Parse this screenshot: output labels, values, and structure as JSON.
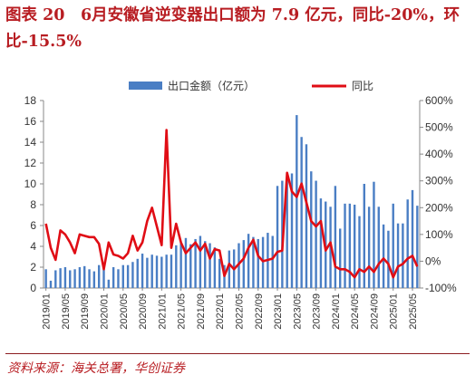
{
  "figure": {
    "title": "图表 20　6月安徽省逆变器出口额为 7.9 亿元，同比-20%，环比-15.5%",
    "source": "资料来源：海关总署，华创证券"
  },
  "colors": {
    "bar": "#4a7ec4",
    "line": "#e00d15",
    "axis": "#888888",
    "text": "#333333",
    "brand": "#b81d22"
  },
  "chart_data": {
    "type": "bar+line",
    "legend": [
      "出口金额（亿元）",
      "同比"
    ],
    "legend_position": "top",
    "grid": false,
    "x_tick_labels": [
      "2019/01",
      "2019/05",
      "2019/09",
      "2020/01",
      "2020/05",
      "2020/09",
      "2021/01",
      "2021/05",
      "2021/09",
      "2022/01",
      "2022/05",
      "2022/09",
      "2023/01",
      "2023/05",
      "2023/09",
      "2024/01",
      "2024/05",
      "2024/09",
      "2025/01",
      "2025/05"
    ],
    "left_axis": {
      "ylim": [
        0,
        18
      ],
      "ticks": [
        "0",
        "2",
        "4",
        "6",
        "8",
        "10",
        "12",
        "14",
        "16",
        "18"
      ]
    },
    "right_axis": {
      "ylim": [
        -100,
        600
      ],
      "ticks": [
        "-100%",
        "0%",
        "100%",
        "200%",
        "300%",
        "400%",
        "500%",
        "600%"
      ]
    },
    "x": [
      "2019/01",
      "2019/02",
      "2019/03",
      "2019/04",
      "2019/05",
      "2019/06",
      "2019/07",
      "2019/08",
      "2019/09",
      "2019/10",
      "2019/11",
      "2019/12",
      "2020/01",
      "2020/02",
      "2020/03",
      "2020/04",
      "2020/05",
      "2020/06",
      "2020/07",
      "2020/08",
      "2020/09",
      "2020/10",
      "2020/11",
      "2020/12",
      "2021/01",
      "2021/02",
      "2021/03",
      "2021/04",
      "2021/05",
      "2021/06",
      "2021/07",
      "2021/08",
      "2021/09",
      "2021/10",
      "2021/11",
      "2021/12",
      "2022/01",
      "2022/02",
      "2022/03",
      "2022/04",
      "2022/05",
      "2022/06",
      "2022/07",
      "2022/08",
      "2022/09",
      "2022/10",
      "2022/11",
      "2022/12",
      "2023/01",
      "2023/02",
      "2023/03",
      "2023/04",
      "2023/05",
      "2023/06",
      "2023/07",
      "2023/08",
      "2023/09",
      "2023/10",
      "2023/11",
      "2023/12",
      "2024/01",
      "2024/02",
      "2024/03",
      "2024/04",
      "2024/05",
      "2024/06",
      "2024/07",
      "2024/08",
      "2024/09",
      "2024/10",
      "2024/11",
      "2024/12",
      "2025/01",
      "2025/02",
      "2025/03",
      "2025/04",
      "2025/05",
      "2025/06"
    ],
    "series": [
      {
        "name": "出口金额（亿元）",
        "type": "bar",
        "axis": "left",
        "values": [
          1.8,
          0.7,
          1.7,
          1.9,
          2.0,
          1.7,
          1.8,
          2.0,
          2.1,
          1.8,
          1.6,
          2.2,
          1.8,
          0.8,
          2.0,
          1.8,
          2.2,
          2.2,
          2.5,
          2.8,
          3.3,
          2.9,
          3.2,
          3.1,
          3.0,
          3.2,
          3.2,
          4.1,
          4.4,
          4.8,
          4.2,
          4.7,
          5.0,
          4.5,
          4.3,
          3.9,
          2.8,
          2.2,
          3.6,
          3.7,
          4.3,
          4.6,
          5.2,
          4.9,
          4.7,
          4.9,
          5.3,
          5.0,
          9.8,
          10.3,
          11.0,
          11.0,
          16.6,
          14.5,
          13.8,
          11.2,
          10.3,
          8.6,
          8.3,
          7.8,
          9.8,
          5.7,
          8.1,
          8.1,
          8.0,
          6.9,
          10.0,
          7.8,
          10.2,
          7.8,
          6.1,
          5.5,
          8.1,
          6.2,
          6.2,
          8.5,
          9.4,
          7.9
        ]
      },
      {
        "name": "同比",
        "type": "line",
        "axis": "right",
        "unit": "%",
        "values": [
          140,
          50,
          5,
          115,
          100,
          70,
          30,
          100,
          95,
          90,
          90,
          65,
          -30,
          70,
          25,
          20,
          10,
          30,
          95,
          40,
          70,
          150,
          200,
          130,
          60,
          490,
          50,
          140,
          70,
          30,
          50,
          70,
          40,
          65,
          10,
          45,
          40,
          -55,
          -10,
          -30,
          -10,
          10,
          50,
          80,
          20,
          0,
          5,
          10,
          35,
          40,
          330,
          260,
          240,
          290,
          220,
          150,
          130,
          150,
          40,
          70,
          -20,
          -30,
          -30,
          -40,
          -60,
          -30,
          -40,
          -20,
          -40,
          -10,
          10,
          -10,
          -60,
          -20,
          -10,
          10,
          20,
          -20
        ]
      }
    ]
  }
}
